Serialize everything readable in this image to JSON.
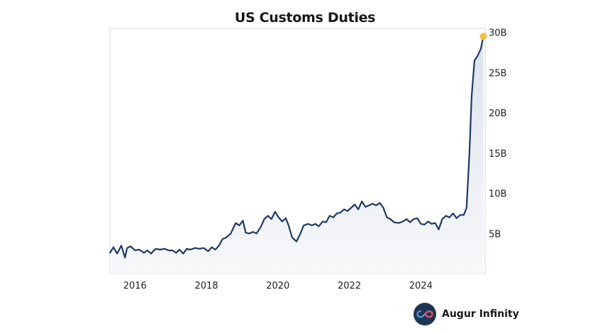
{
  "chart_data": {
    "type": "area",
    "title": "US Customs Duties",
    "xlabel": "",
    "ylabel": "",
    "xlim": [
      2015.3,
      2025.8
    ],
    "ylim": [
      0,
      30.5
    ],
    "y_ticks": [
      5,
      10,
      15,
      20,
      25,
      30
    ],
    "y_tick_labels": [
      "5B",
      "10B",
      "15B",
      "20B",
      "25B",
      "30B"
    ],
    "x_ticks": [
      2016,
      2018,
      2020,
      2022,
      2024
    ],
    "x_tick_labels": [
      "2016",
      "2018",
      "2020",
      "2022",
      "2024"
    ],
    "grid": false,
    "series": [
      {
        "name": "US Customs Duties",
        "color": "#1f3a64",
        "fill_top": "#dde3ec",
        "fill_bottom": "#f7f8fa",
        "last_point_marker_color": "#f0c040",
        "x": [
          2015.3,
          2015.4,
          2015.5,
          2015.62,
          2015.72,
          2015.78,
          2015.88,
          2016.0,
          2016.12,
          2016.25,
          2016.35,
          2016.45,
          2016.58,
          2016.7,
          2016.82,
          2016.95,
          2017.05,
          2017.15,
          2017.25,
          2017.35,
          2017.45,
          2017.55,
          2017.68,
          2017.8,
          2017.92,
          2018.05,
          2018.15,
          2018.25,
          2018.35,
          2018.45,
          2018.55,
          2018.68,
          2018.82,
          2018.92,
          2019.02,
          2019.1,
          2019.2,
          2019.3,
          2019.4,
          2019.52,
          2019.62,
          2019.72,
          2019.82,
          2019.92,
          2020.02,
          2020.12,
          2020.22,
          2020.3,
          2020.4,
          2020.52,
          2020.62,
          2020.72,
          2020.85,
          2020.95,
          2021.05,
          2021.15,
          2021.25,
          2021.35,
          2021.45,
          2021.55,
          2021.65,
          2021.75,
          2021.85,
          2021.95,
          2022.05,
          2022.15,
          2022.25,
          2022.35,
          2022.45,
          2022.55,
          2022.65,
          2022.75,
          2022.85,
          2022.95,
          2023.05,
          2023.15,
          2023.25,
          2023.38,
          2023.5,
          2023.6,
          2023.7,
          2023.8,
          2023.9,
          2024.0,
          2024.1,
          2024.2,
          2024.3,
          2024.4,
          2024.5,
          2024.6,
          2024.7,
          2024.8,
          2024.9,
          2025.0,
          2025.1,
          2025.2,
          2025.28,
          2025.36,
          2025.42,
          2025.5,
          2025.58,
          2025.68,
          2025.75
        ],
        "values": [
          2.6,
          3.3,
          2.5,
          3.5,
          2.0,
          3.2,
          3.4,
          2.9,
          3.0,
          2.6,
          2.9,
          2.5,
          3.1,
          3.0,
          3.1,
          2.9,
          2.9,
          2.6,
          3.0,
          2.5,
          3.1,
          3.0,
          3.2,
          3.1,
          3.2,
          2.8,
          3.3,
          3.0,
          3.5,
          4.3,
          4.5,
          5.0,
          6.3,
          6.0,
          6.6,
          5.1,
          5.0,
          5.2,
          5.0,
          5.8,
          6.8,
          7.2,
          6.8,
          7.7,
          7.0,
          6.5,
          6.9,
          6.0,
          4.5,
          4.0,
          4.9,
          6.0,
          6.2,
          6.0,
          6.2,
          5.9,
          6.5,
          6.4,
          7.2,
          7.0,
          7.5,
          7.6,
          8.0,
          7.8,
          8.2,
          8.6,
          8.0,
          9.0,
          8.3,
          8.5,
          8.7,
          8.5,
          8.8,
          8.2,
          7.0,
          6.8,
          6.4,
          6.3,
          6.5,
          6.8,
          6.4,
          6.8,
          6.9,
          6.2,
          6.1,
          6.5,
          6.2,
          6.3,
          5.5,
          6.8,
          7.2,
          7.0,
          7.5,
          6.9,
          7.3,
          7.3,
          8.2,
          15.0,
          22.0,
          26.5,
          27.0,
          28.0,
          29.5
        ]
      }
    ]
  },
  "brand": {
    "name": "Augur Infinity",
    "logo_icon": "infinity-icon",
    "logo_background": "#1f3555"
  }
}
